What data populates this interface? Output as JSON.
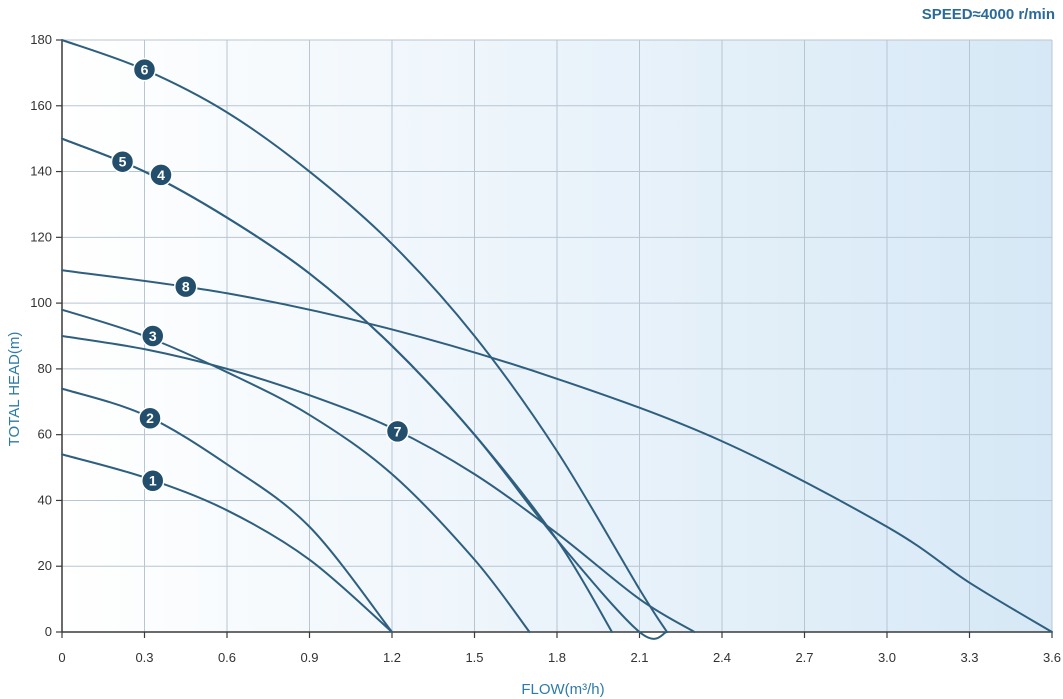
{
  "chart_data": {
    "type": "line",
    "title": "",
    "speed_label": "SPEED≈4000 r/min",
    "xlabel": "FLOW(m³/h)",
    "ylabel": "TOTAL HEAD(m)",
    "xlim": [
      0,
      3.6
    ],
    "ylim": [
      0,
      180
    ],
    "x_ticks": [
      "0",
      "0.3",
      "0.6",
      "0.9",
      "1.2",
      "1.5",
      "1.8",
      "2.1",
      "2.4",
      "2.7",
      "3.0",
      "3.3",
      "3.6"
    ],
    "y_ticks": [
      "180",
      "160",
      "140",
      "120",
      "100",
      "80",
      "60",
      "40",
      "20",
      "0"
    ],
    "grid": true,
    "colors": {
      "curve": "#2f5f7e",
      "badge": "#234f6d",
      "grid": "#b8c6d2",
      "axis": "#3a3a3a",
      "gradient_start": "#ffffff",
      "gradient_end": "#d6e8f6"
    },
    "series": [
      {
        "name": "1",
        "x": [
          0,
          0.3,
          0.6,
          0.9,
          1.2
        ],
        "y": [
          54,
          47,
          37,
          22,
          0
        ],
        "label_at": [
          0.33,
          46
        ]
      },
      {
        "name": "2",
        "x": [
          0,
          0.3,
          0.6,
          0.9,
          1.2
        ],
        "y": [
          74,
          66,
          51,
          32,
          0
        ],
        "label_at": [
          0.32,
          65
        ]
      },
      {
        "name": "3",
        "x": [
          0,
          0.3,
          0.6,
          0.9,
          1.2,
          1.5,
          1.7
        ],
        "y": [
          98,
          90,
          79,
          66,
          48,
          22,
          0
        ],
        "label_at": [
          0.33,
          90
        ]
      },
      {
        "name": "4",
        "x": [
          0,
          0.3,
          0.6,
          0.9,
          1.2,
          1.5,
          1.8,
          2.0
        ],
        "y": [
          150,
          140,
          126,
          109,
          87,
          60,
          28,
          0
        ],
        "label_at": [
          0.36,
          139
        ]
      },
      {
        "name": "5",
        "x": [
          0,
          0.3,
          0.6,
          0.9,
          1.2,
          1.5,
          1.8,
          2.1,
          2.2
        ],
        "y": [
          150,
          140,
          126,
          109,
          87,
          60,
          28,
          0,
          0
        ],
        "label_at": [
          0.22,
          143
        ]
      },
      {
        "name": "6",
        "x": [
          0,
          0.3,
          0.6,
          0.9,
          1.2,
          1.5,
          1.8,
          2.1,
          2.2
        ],
        "y": [
          180,
          171,
          158,
          140,
          118,
          90,
          55,
          13,
          0
        ],
        "label_at": [
          0.3,
          171
        ]
      },
      {
        "name": "7",
        "x": [
          0,
          0.3,
          0.6,
          0.9,
          1.2,
          1.5,
          1.8,
          2.1,
          2.3
        ],
        "y": [
          90,
          86,
          80,
          72,
          62,
          48,
          30,
          10,
          0
        ],
        "label_at": [
          1.22,
          61
        ]
      },
      {
        "name": "8",
        "x": [
          0,
          0.6,
          1.2,
          1.8,
          2.4,
          3.0,
          3.3,
          3.6
        ],
        "y": [
          110,
          103,
          92,
          77,
          58,
          32,
          15,
          0
        ],
        "label_at": [
          0.45,
          105
        ]
      }
    ]
  }
}
